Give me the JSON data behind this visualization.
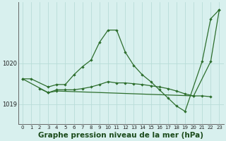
{
  "title": "Graphe pression niveau de la mer (hPa)",
  "x_labels": [
    "0",
    "1",
    "2",
    "3",
    "4",
    "5",
    "6",
    "7",
    "8",
    "9",
    "10",
    "11",
    "12",
    "13",
    "14",
    "15",
    "16",
    "17",
    "18",
    "19",
    "20",
    "21",
    "22",
    "23"
  ],
  "x_values": [
    0,
    1,
    2,
    3,
    4,
    5,
    6,
    7,
    8,
    9,
    10,
    11,
    12,
    13,
    14,
    15,
    16,
    17,
    18,
    19,
    20,
    21,
    22,
    23
  ],
  "series1_x": [
    0,
    1,
    3,
    4,
    5,
    6,
    7,
    8,
    9,
    10,
    11,
    12,
    13,
    14,
    15,
    16,
    17,
    18,
    19,
    21,
    22,
    23
  ],
  "series1_y": [
    1019.62,
    1019.62,
    1019.42,
    1019.48,
    1019.48,
    1019.72,
    1019.92,
    1020.08,
    1020.52,
    1020.82,
    1020.82,
    1020.28,
    1019.95,
    1019.72,
    1019.55,
    1019.35,
    1019.15,
    1018.95,
    1018.82,
    1020.05,
    1021.1,
    1021.32
  ],
  "series2_x": [
    2,
    3,
    4,
    5,
    6,
    7,
    8,
    9,
    10,
    11,
    12,
    13,
    14,
    15,
    16,
    17,
    18,
    19,
    20,
    21,
    22
  ],
  "series2_y": [
    1019.38,
    1019.28,
    1019.35,
    1019.35,
    1019.35,
    1019.38,
    1019.42,
    1019.48,
    1019.55,
    1019.52,
    1019.52,
    1019.5,
    1019.48,
    1019.45,
    1019.42,
    1019.38,
    1019.32,
    1019.25,
    1019.2,
    1019.2,
    1019.18
  ],
  "series3_x": [
    0,
    3,
    4,
    20,
    22,
    23
  ],
  "series3_y": [
    1019.62,
    1019.28,
    1019.32,
    1019.2,
    1020.05,
    1021.32
  ],
  "line_color": "#2d6e2d",
  "bg_color": "#d8f0ee",
  "grid_color": "#b8dcd8",
  "ylim": [
    1018.5,
    1021.5
  ],
  "yticks": [
    1019,
    1020
  ],
  "title_fontsize": 7.5
}
